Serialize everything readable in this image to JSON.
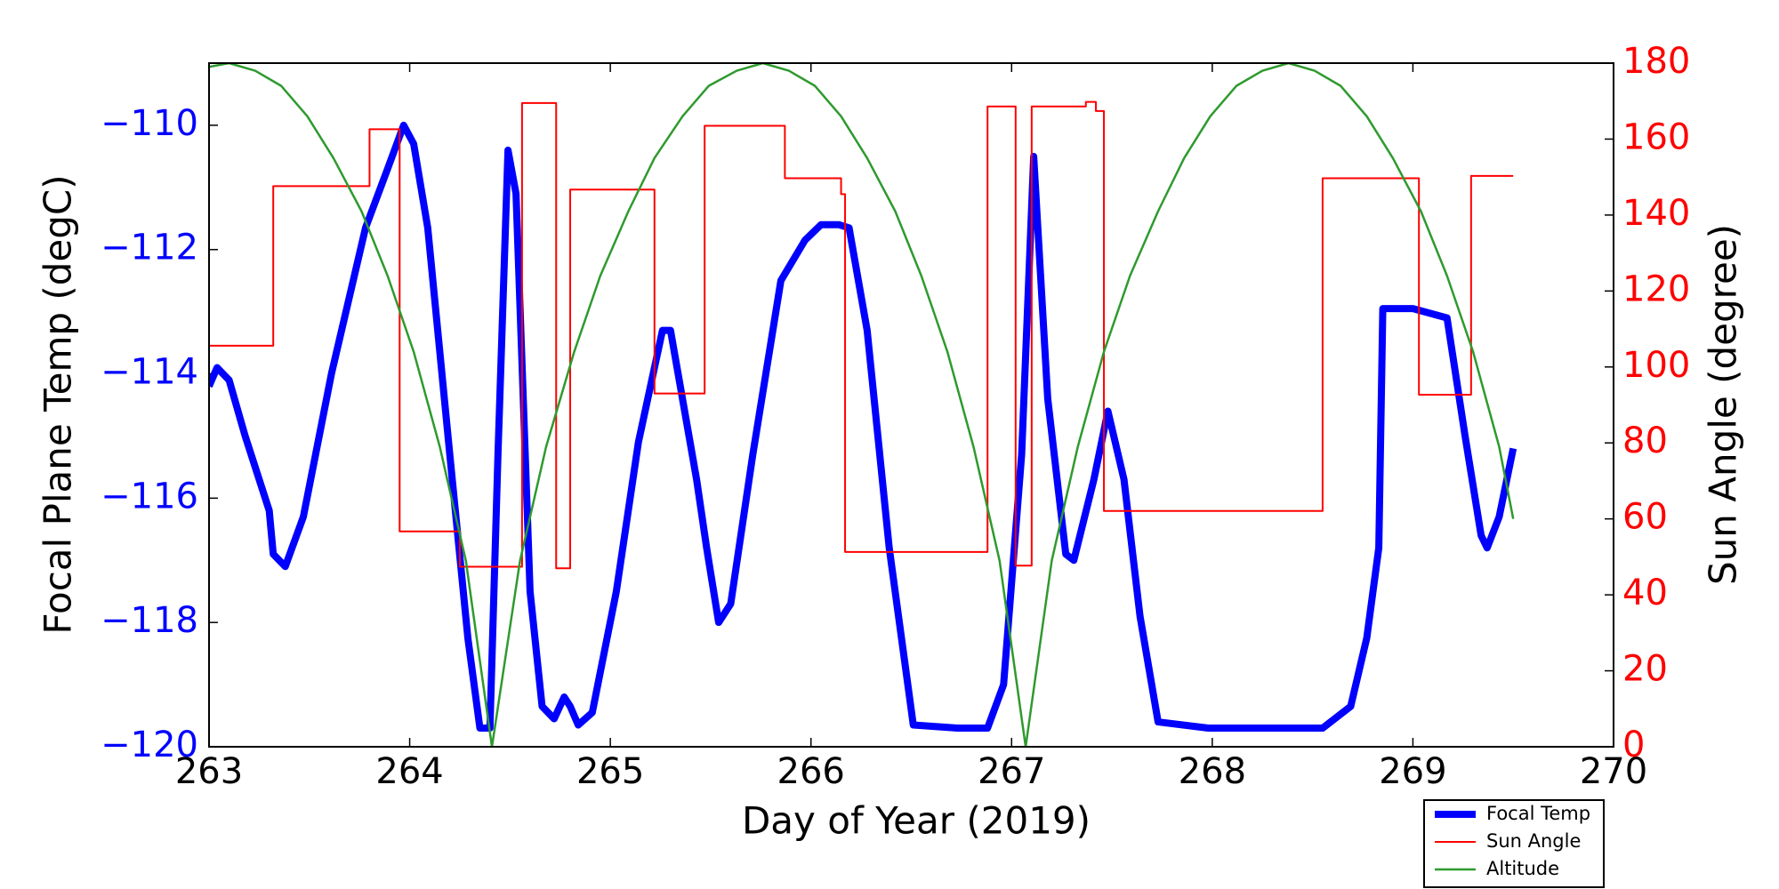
{
  "chart_data": {
    "type": "line",
    "xlabel": "Day of Year (2019)",
    "ylabel": "Focal Plane Temp (degC)",
    "y2label": "Sun Angle (degree)",
    "xlim": [
      263,
      270
    ],
    "xticks": [
      263,
      264,
      265,
      266,
      267,
      268,
      269,
      270
    ],
    "ylim": [
      -120,
      -109
    ],
    "yticks": [
      {
        "value": -120,
        "label": "−120"
      },
      {
        "value": -118,
        "label": "−118"
      },
      {
        "value": -116,
        "label": "−116"
      },
      {
        "value": -114,
        "label": "−114"
      },
      {
        "value": -112,
        "label": "−112"
      },
      {
        "value": -110,
        "label": "−110"
      }
    ],
    "ylabel_color": "#0000ff",
    "y2lim": [
      0,
      180
    ],
    "y2ticks": [
      0,
      20,
      40,
      60,
      80,
      100,
      120,
      140,
      160,
      180
    ],
    "y2label_color": "#ff0000",
    "legend": "lower right",
    "series": [
      {
        "name": "Focal Temp",
        "color": "#0000ff",
        "width": 8,
        "x": [
          263.0,
          263.04,
          263.1,
          263.18,
          263.3,
          263.32,
          263.38,
          263.47,
          263.61,
          263.78,
          263.89,
          263.97,
          264.02,
          264.09,
          264.2,
          264.29,
          264.35,
          264.4,
          264.44,
          264.49,
          264.53,
          264.6,
          264.66,
          264.72,
          264.77,
          264.8,
          264.84,
          264.91,
          265.03,
          265.14,
          265.26,
          265.3,
          265.43,
          265.48,
          265.54,
          265.6,
          265.71,
          265.85,
          265.97,
          266.05,
          266.14,
          266.19,
          266.28,
          266.39,
          266.51,
          266.73,
          266.88,
          266.96,
          267.05,
          267.11,
          267.18,
          267.27,
          267.31,
          267.41,
          267.48,
          267.56,
          267.64,
          267.73,
          267.98,
          268.32,
          268.55,
          268.69,
          268.77,
          268.83,
          268.85,
          269.0,
          269.17,
          269.26,
          269.34,
          269.37,
          269.43,
          269.5
        ],
        "values": [
          -114.2,
          -113.9,
          -114.1,
          -115.0,
          -116.2,
          -116.9,
          -117.1,
          -116.3,
          -114.0,
          -111.65,
          -110.7,
          -110.0,
          -110.3,
          -111.65,
          -115.3,
          -118.25,
          -119.7,
          -119.7,
          -115.3,
          -110.4,
          -111.1,
          -117.5,
          -119.35,
          -119.55,
          -119.2,
          -119.35,
          -119.65,
          -119.45,
          -117.5,
          -115.1,
          -113.3,
          -113.3,
          -115.7,
          -116.8,
          -118.0,
          -117.7,
          -115.3,
          -112.5,
          -111.85,
          -111.6,
          -111.6,
          -111.65,
          -113.3,
          -116.8,
          -119.65,
          -119.7,
          -119.7,
          -119.0,
          -115.3,
          -110.5,
          -114.4,
          -116.9,
          -117.0,
          -115.7,
          -114.6,
          -115.7,
          -117.9,
          -119.6,
          -119.7,
          -119.7,
          -119.7,
          -119.35,
          -118.25,
          -116.8,
          -112.95,
          -112.95,
          -113.1,
          -115.0,
          -116.6,
          -116.8,
          -116.3,
          -115.2
        ]
      },
      {
        "name": "Sun Angle",
        "color": "#ff0000",
        "width": 2,
        "axis": "y2",
        "x": [
          263.0,
          263.32,
          263.32,
          263.8,
          263.8,
          263.95,
          263.95,
          264.25,
          264.25,
          264.56,
          264.56,
          264.73,
          264.73,
          264.8,
          264.8,
          265.22,
          265.22,
          265.47,
          265.47,
          265.87,
          265.87,
          266.15,
          266.15,
          266.17,
          266.17,
          266.88,
          266.88,
          267.02,
          267.02,
          267.1,
          267.1,
          267.37,
          267.37,
          267.42,
          267.42,
          267.46,
          267.46,
          268.55,
          268.55,
          269.03,
          269.03,
          269.29,
          269.29,
          269.5
        ],
        "values": [
          105.6,
          105.6,
          147.6,
          147.6,
          162.6,
          162.6,
          56.7,
          56.7,
          47.4,
          47.4,
          169.5,
          169.5,
          47,
          47,
          146.7,
          146.7,
          93,
          93,
          163.5,
          163.5,
          149.7,
          149.7,
          145.5,
          145.5,
          51.3,
          51.3,
          168.6,
          168.6,
          47.7,
          47.7,
          168.6,
          168.6,
          169.8,
          169.8,
          167.4,
          167.4,
          62.1,
          62.1,
          149.7,
          149.7,
          92.7,
          92.7,
          150.3,
          150.3
        ]
      },
      {
        "name": "Altitude",
        "color": "#2e9a2e",
        "width": 2.5,
        "axis": "y2",
        "x": [
          263.0,
          263.1,
          263.23,
          263.36,
          263.49,
          263.62,
          263.76,
          263.89,
          264.02,
          264.15,
          264.28,
          264.41,
          264.55,
          264.68,
          264.82,
          264.95,
          265.09,
          265.22,
          265.36,
          265.49,
          265.63,
          265.76,
          265.89,
          266.02,
          266.15,
          266.28,
          266.42,
          266.55,
          266.68,
          266.81,
          266.94,
          267.07,
          267.2,
          267.33,
          267.46,
          267.59,
          267.73,
          267.86,
          267.99,
          268.12,
          268.25,
          268.38,
          268.51,
          268.64,
          268.77,
          268.9,
          269.04,
          269.17,
          269.3,
          269.43,
          269.5
        ],
        "values": [
          179,
          180,
          178,
          174,
          166,
          155,
          141,
          124,
          104,
          79,
          49,
          0,
          49,
          79,
          104,
          124,
          141,
          155,
          166,
          174,
          178,
          180,
          178,
          174,
          166,
          155,
          141,
          124,
          104,
          79,
          49,
          0,
          49,
          79,
          104,
          124,
          141,
          155,
          166,
          174,
          178,
          180,
          178,
          174,
          166,
          155,
          141,
          124,
          104,
          79,
          60
        ]
      }
    ]
  }
}
